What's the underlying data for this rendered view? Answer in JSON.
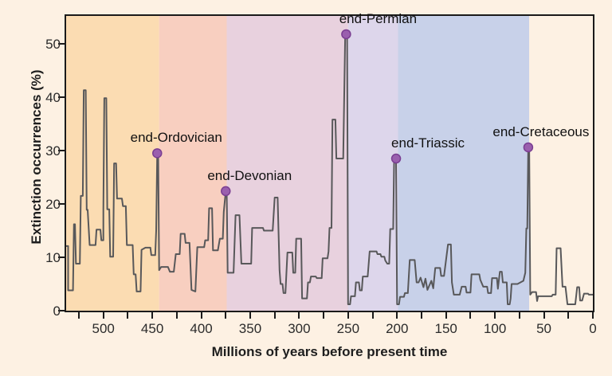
{
  "figure": {
    "background_color": "#fdf1e3",
    "plot_border_color": "#1a1a1a",
    "text_color": "#1e1e1e"
  },
  "chart_data": {
    "type": "line",
    "title": "",
    "xlabel": "Millions of years before present time",
    "ylabel": "Extinction occurrences (%)",
    "xlim": [
      538,
      0
    ],
    "ylim": [
      0,
      55
    ],
    "x_axis_direction": "values decrease left to right",
    "x_ticks_labeled": [
      500,
      450,
      400,
      350,
      300,
      250,
      200,
      150,
      100,
      50,
      0
    ],
    "x_tick_minor_interval": 25,
    "y_ticks": [
      0,
      10,
      20,
      30,
      40,
      50
    ],
    "grid": false,
    "legend": "none",
    "line_color": "#58585a",
    "marker_color": "#9a5fae",
    "marker_edge_color": "#7a3e92",
    "era_bands": [
      {
        "from_mya": 538,
        "to_mya": 443,
        "color": "#fbdcb2"
      },
      {
        "from_mya": 443,
        "to_mya": 374,
        "color": "#f8cfc0"
      },
      {
        "from_mya": 374,
        "to_mya": 250,
        "color": "#e8d1de"
      },
      {
        "from_mya": 250,
        "to_mya": 199,
        "color": "#ddd6eb"
      },
      {
        "from_mya": 199,
        "to_mya": 65,
        "color": "#c8d1e9"
      },
      {
        "from_mya": 65,
        "to_mya": 0,
        "color": "#fdf1e3"
      }
    ],
    "events": [
      {
        "label": "end-Ordovician",
        "mya": 445,
        "pct": 29.5,
        "label_dx": 24
      },
      {
        "label": "end-Devonian",
        "mya": 375,
        "pct": 22.4,
        "label_dx": 30
      },
      {
        "label": "end-Permian",
        "mya": 252,
        "pct": 51.8,
        "label_dx": 40
      },
      {
        "label": "end-Triassic",
        "mya": 201,
        "pct": 28.5,
        "label_dx": 40
      },
      {
        "label": "end-Cretaceous",
        "mya": 66,
        "pct": 30.6,
        "label_dx": 16
      }
    ],
    "series": [
      {
        "name": "extinction occurrences (%)",
        "points": [
          [
            538,
            12.1
          ],
          [
            536,
            12.1
          ],
          [
            536,
            3.8
          ],
          [
            531,
            3.8
          ],
          [
            530,
            16.2
          ],
          [
            529,
            16.2
          ],
          [
            528,
            8.8
          ],
          [
            524,
            8.8
          ],
          [
            523,
            21.5
          ],
          [
            521,
            21.5
          ],
          [
            520,
            41.3
          ],
          [
            518,
            41.3
          ],
          [
            517,
            18.9
          ],
          [
            516,
            18.9
          ],
          [
            514,
            12.3
          ],
          [
            508,
            12.3
          ],
          [
            507,
            15.2
          ],
          [
            503,
            15.2
          ],
          [
            502,
            13.2
          ],
          [
            500,
            13.2
          ],
          [
            500,
            18.9
          ],
          [
            499,
            39.8
          ],
          [
            497,
            39.8
          ],
          [
            496,
            19.0
          ],
          [
            494,
            19.0
          ],
          [
            493,
            10.1
          ],
          [
            490,
            10.1
          ],
          [
            489,
            27.6
          ],
          [
            487,
            27.6
          ],
          [
            486,
            21.0
          ],
          [
            481,
            21.0
          ],
          [
            480,
            19.6
          ],
          [
            477,
            19.6
          ],
          [
            476,
            12.3
          ],
          [
            470,
            12.3
          ],
          [
            469,
            6.8
          ],
          [
            467,
            6.8
          ],
          [
            466,
            3.6
          ],
          [
            462,
            3.6
          ],
          [
            461,
            11.4
          ],
          [
            457,
            11.8
          ],
          [
            452,
            11.8
          ],
          [
            451,
            10.4
          ],
          [
            447,
            10.4
          ],
          [
            446,
            15.0
          ],
          [
            445,
            29.5
          ],
          [
            444,
            29.5
          ],
          [
            443,
            7.6
          ],
          [
            441,
            8.2
          ],
          [
            434,
            8.2
          ],
          [
            432,
            7.3
          ],
          [
            428,
            7.3
          ],
          [
            426,
            10.6
          ],
          [
            422,
            10.6
          ],
          [
            421,
            14.4
          ],
          [
            417,
            14.4
          ],
          [
            416,
            12.7
          ],
          [
            412,
            12.7
          ],
          [
            410,
            3.9
          ],
          [
            406,
            3.6
          ],
          [
            404,
            11.9
          ],
          [
            397,
            11.9
          ],
          [
            396,
            13.2
          ],
          [
            393,
            13.2
          ],
          [
            392,
            19.2
          ],
          [
            389,
            19.2
          ],
          [
            388,
            11.3
          ],
          [
            383,
            11.3
          ],
          [
            381,
            13.5
          ],
          [
            378,
            13.5
          ],
          [
            377,
            18.5
          ],
          [
            375,
            22.4
          ],
          [
            374,
            22.4
          ],
          [
            373,
            7.1
          ],
          [
            367,
            7.1
          ],
          [
            365,
            17.9
          ],
          [
            361,
            17.9
          ],
          [
            359,
            8.8
          ],
          [
            349,
            8.8
          ],
          [
            348,
            15.5
          ],
          [
            337,
            15.5
          ],
          [
            336,
            15.0
          ],
          [
            327,
            15.0
          ],
          [
            325,
            21.2
          ],
          [
            322,
            21.2
          ],
          [
            320,
            7.6
          ],
          [
            319,
            5.0
          ],
          [
            317,
            5.0
          ],
          [
            316,
            3.3
          ],
          [
            314,
            3.3
          ],
          [
            312,
            10.9
          ],
          [
            307,
            10.9
          ],
          [
            306,
            7.1
          ],
          [
            304,
            7.1
          ],
          [
            303,
            13.5
          ],
          [
            298,
            13.5
          ],
          [
            297,
            2.3
          ],
          [
            292,
            2.3
          ],
          [
            291,
            5.3
          ],
          [
            289,
            5.3
          ],
          [
            288,
            6.4
          ],
          [
            283,
            6.4
          ],
          [
            282,
            6.1
          ],
          [
            277,
            6.1
          ],
          [
            276,
            9.8
          ],
          [
            271,
            9.8
          ],
          [
            270,
            11.1
          ],
          [
            269,
            15.5
          ],
          [
            267,
            15.5
          ],
          [
            266,
            35.8
          ],
          [
            263,
            35.8
          ],
          [
            262,
            28.5
          ],
          [
            255,
            28.5
          ],
          [
            253,
            51.8
          ],
          [
            251,
            51.8
          ],
          [
            250,
            1.2
          ],
          [
            248,
            1.2
          ],
          [
            247,
            2.7
          ],
          [
            243,
            2.7
          ],
          [
            242,
            5.3
          ],
          [
            239,
            5.3
          ],
          [
            238,
            3.8
          ],
          [
            236,
            3.8
          ],
          [
            235,
            6.4
          ],
          [
            230,
            6.4
          ],
          [
            228,
            11.1
          ],
          [
            221,
            11.1
          ],
          [
            220,
            10.6
          ],
          [
            217,
            10.6
          ],
          [
            216,
            10.1
          ],
          [
            213,
            10.1
          ],
          [
            212,
            9.4
          ],
          [
            210,
            8.8
          ],
          [
            208,
            8.8
          ],
          [
            207,
            15.3
          ],
          [
            204,
            15.3
          ],
          [
            203,
            28.5
          ],
          [
            201,
            28.5
          ],
          [
            200,
            1.2
          ],
          [
            198,
            1.2
          ],
          [
            197,
            2.6
          ],
          [
            193,
            2.6
          ],
          [
            192,
            3.3
          ],
          [
            189,
            3.3
          ],
          [
            187,
            9.5
          ],
          [
            182,
            9.5
          ],
          [
            180,
            5.3
          ],
          [
            178,
            5.3
          ],
          [
            176,
            6.2
          ],
          [
            173,
            4.4
          ],
          [
            171,
            6.0
          ],
          [
            169,
            3.9
          ],
          [
            165,
            5.6
          ],
          [
            163,
            4.2
          ],
          [
            161,
            8.0
          ],
          [
            156,
            8.0
          ],
          [
            155,
            6.5
          ],
          [
            152,
            6.5
          ],
          [
            148,
            12.4
          ],
          [
            145,
            12.4
          ],
          [
            144,
            5.3
          ],
          [
            142,
            3.0
          ],
          [
            136,
            3.0
          ],
          [
            134,
            4.5
          ],
          [
            130,
            4.5
          ],
          [
            129,
            3.4
          ],
          [
            125,
            3.4
          ],
          [
            124,
            6.8
          ],
          [
            116,
            6.8
          ],
          [
            115,
            5.8
          ],
          [
            112,
            4.5
          ],
          [
            108,
            4.5
          ],
          [
            107,
            3.3
          ],
          [
            104,
            3.3
          ],
          [
            103,
            6.1
          ],
          [
            98,
            6.1
          ],
          [
            97,
            4.1
          ],
          [
            95,
            7.3
          ],
          [
            93,
            7.3
          ],
          [
            92,
            5.3
          ],
          [
            88,
            5.3
          ],
          [
            87,
            1.2
          ],
          [
            85,
            1.2
          ],
          [
            84,
            2.3
          ],
          [
            83,
            5.0
          ],
          [
            77,
            5.0
          ],
          [
            71,
            5.6
          ],
          [
            69,
            7.1
          ],
          [
            68,
            15.4
          ],
          [
            67,
            15.4
          ],
          [
            66,
            30.6
          ],
          [
            65,
            30.6
          ],
          [
            64,
            3.0
          ],
          [
            62,
            3.5
          ],
          [
            58,
            3.5
          ],
          [
            57,
            1.8
          ],
          [
            56,
            2.7
          ],
          [
            42,
            2.7
          ],
          [
            41,
            3.0
          ],
          [
            38,
            3.0
          ],
          [
            37,
            11.7
          ],
          [
            33,
            11.7
          ],
          [
            31,
            4.5
          ],
          [
            28,
            4.5
          ],
          [
            26,
            1.2
          ],
          [
            18,
            1.2
          ],
          [
            16,
            4.4
          ],
          [
            14,
            4.4
          ],
          [
            13,
            1.9
          ],
          [
            11,
            1.9
          ],
          [
            9,
            3.2
          ],
          [
            5,
            3.2
          ],
          [
            4,
            3.0
          ],
          [
            0,
            3.0
          ]
        ]
      }
    ]
  }
}
